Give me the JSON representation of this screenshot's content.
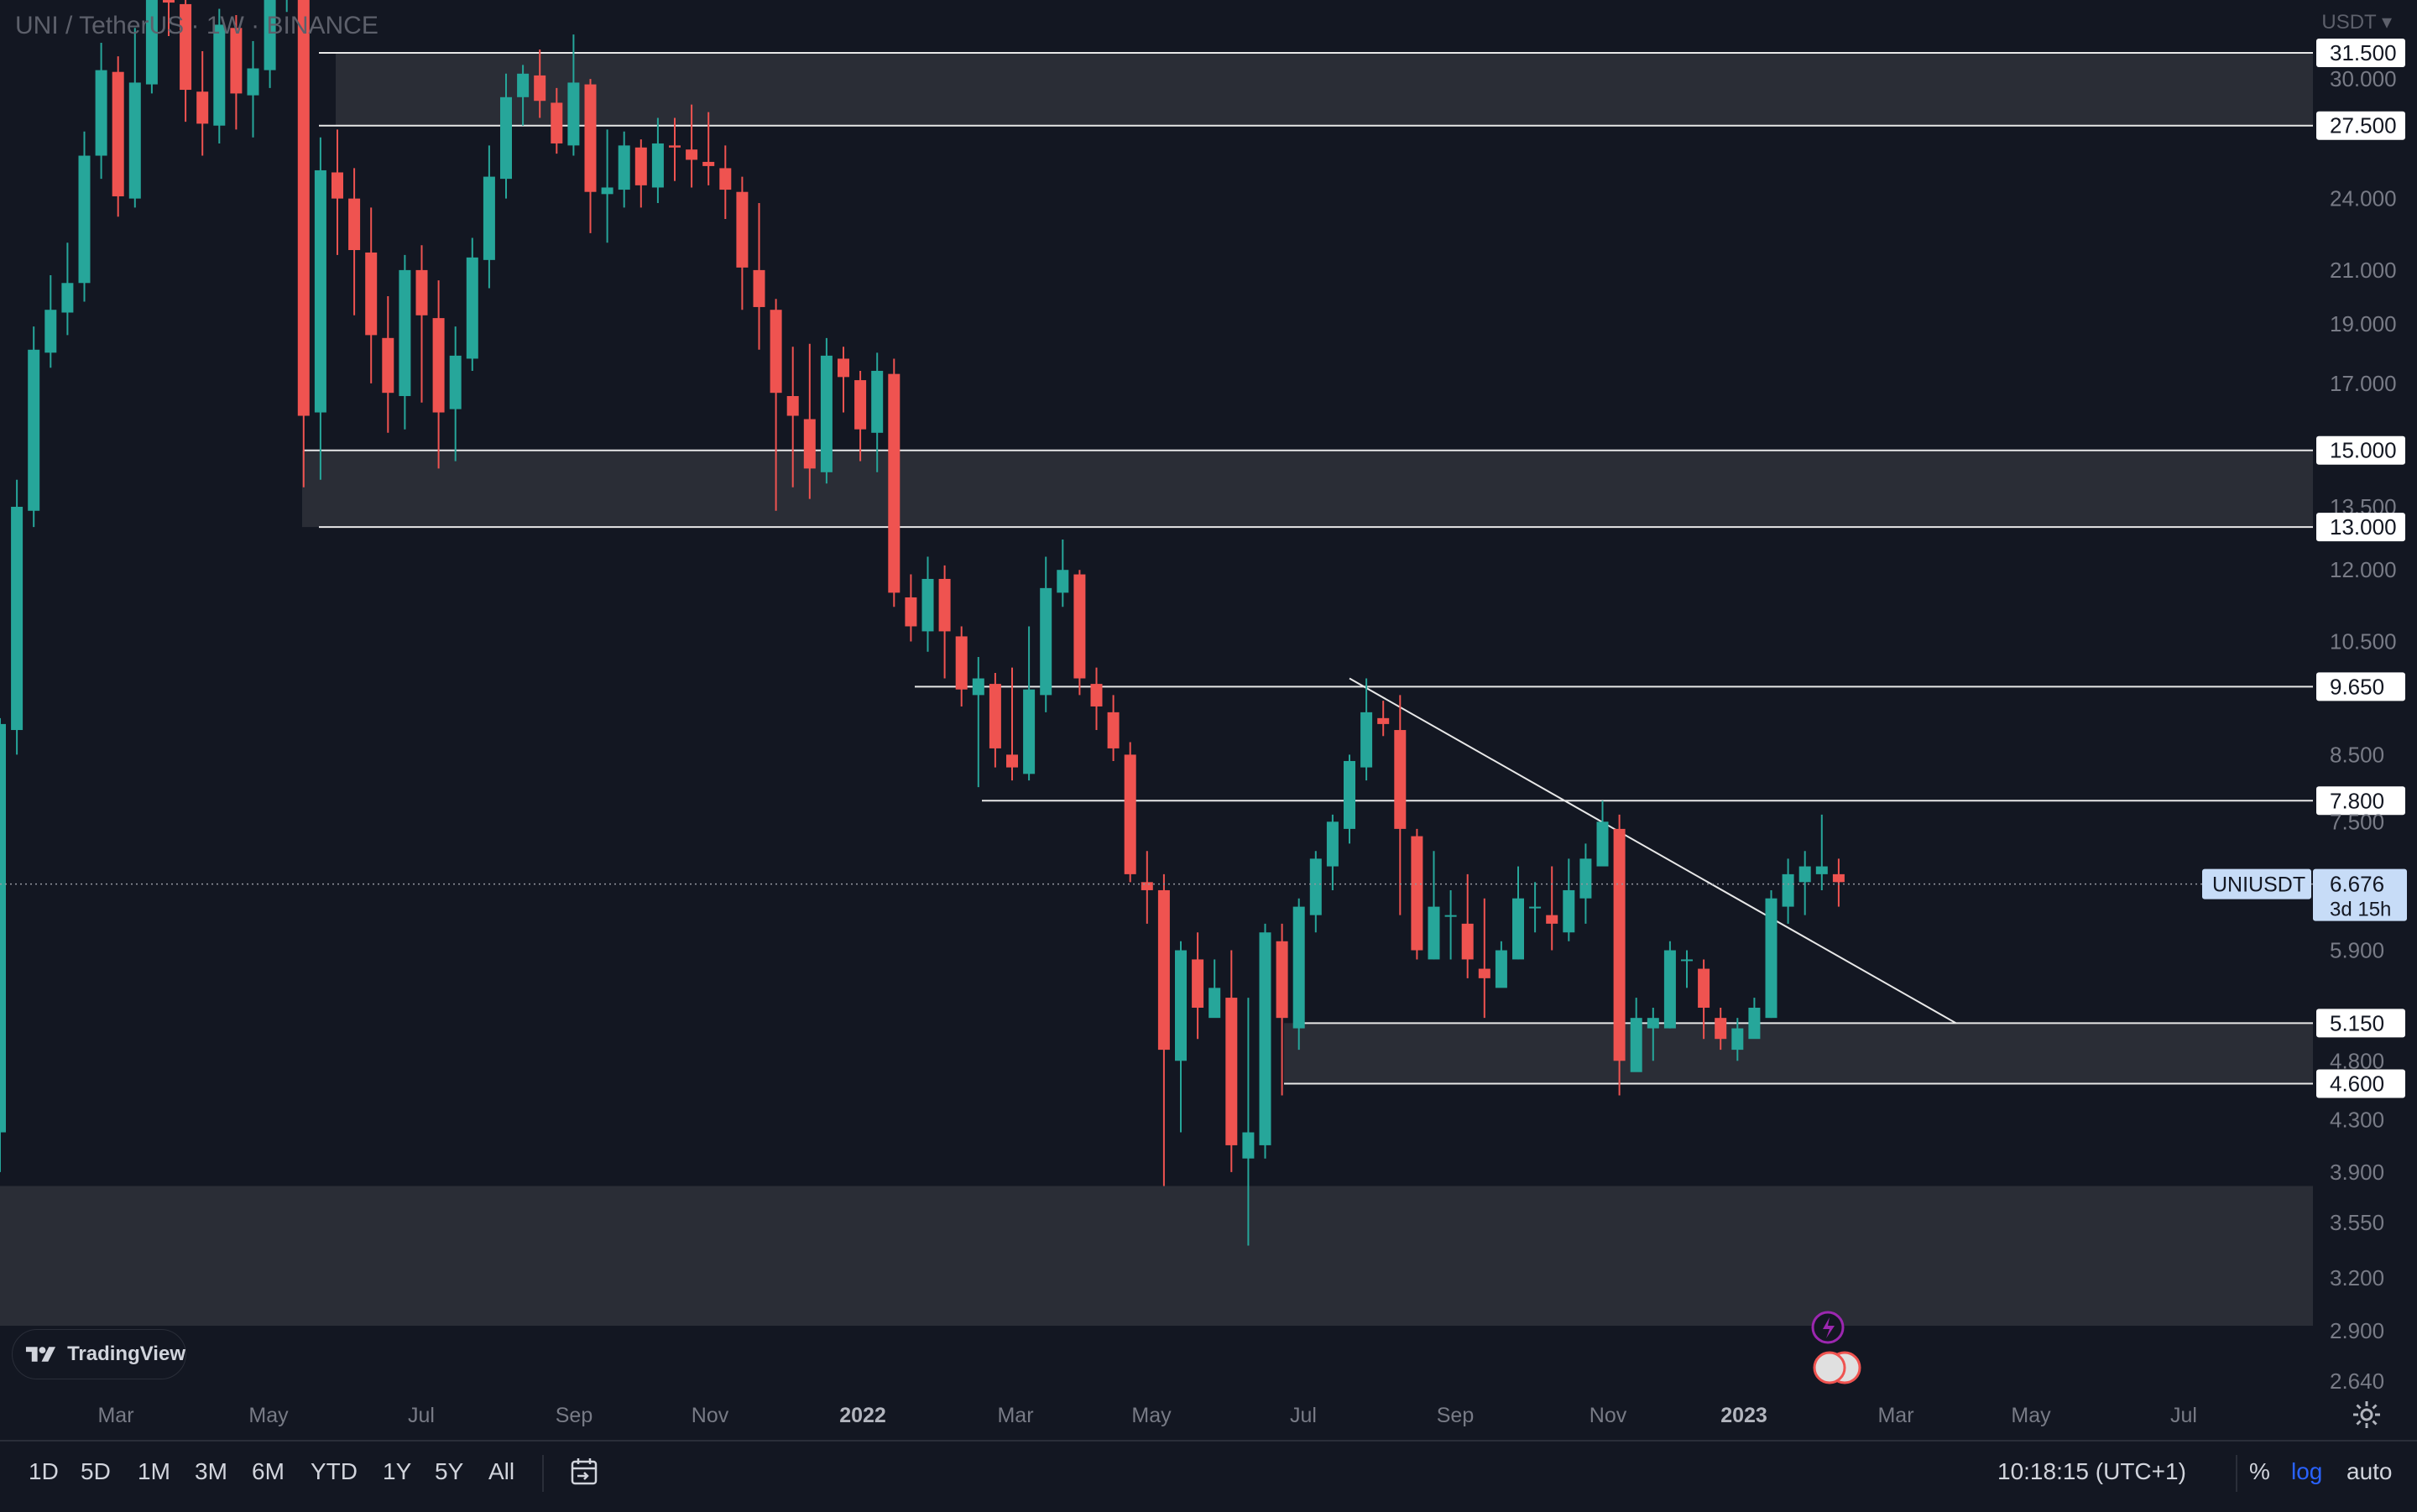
{
  "header": {
    "title": "UNI / TetherUS · 1W · BINANCE"
  },
  "price_scale": {
    "currency": "USDT",
    "ticks": [
      "31.500",
      "30.000",
      "27.500",
      "24.000",
      "21.000",
      "19.000",
      "17.000",
      "15.000",
      "13.500",
      "13.000",
      "12.000",
      "10.500",
      "9.650",
      "8.500",
      "7.800",
      "7.500",
      "6.676",
      "5.900",
      "5.150",
      "4.800",
      "4.600",
      "4.300",
      "3.900",
      "3.550",
      "3.200",
      "2.900",
      "2.640"
    ]
  },
  "chart_data": {
    "type": "candlestick",
    "symbol": "UNIUSDT",
    "interval": "1W",
    "exchange": "BINANCE",
    "y_axis": {
      "scale": "log",
      "range": [
        2.5,
        32.5
      ]
    },
    "time_axis_labels": [
      "Mar",
      "May",
      "Jul",
      "Sep",
      "Nov",
      "2022",
      "Mar",
      "May",
      "Jul",
      "Sep",
      "Nov",
      "2023",
      "Mar",
      "May",
      "Jul"
    ],
    "current_price": {
      "label": "UNIUSDT",
      "value": "6.676",
      "countdown": "3d 15h"
    },
    "horizontal_levels": [
      "31.500",
      "27.500",
      "15.000",
      "13.000",
      "9.650",
      "7.800",
      "5.150",
      "4.600"
    ],
    "zones": [
      {
        "from": 27.5,
        "to": 31.5
      },
      {
        "from": 13.0,
        "to": 15.0
      },
      {
        "from": 4.6,
        "to": 5.15
      },
      {
        "from": 2.5,
        "to": 3.8
      }
    ],
    "trendline": {
      "from": {
        "x": "2022-07-25",
        "y": 9.8
      },
      "to": {
        "x": "2023-01-30",
        "y": 5.15
      }
    },
    "candles": [
      [
        4.2,
        9.0,
        3.9,
        9.1
      ],
      [
        8.9,
        13.5,
        8.5,
        14.2
      ],
      [
        13.4,
        18.1,
        13.0,
        18.9
      ],
      [
        18.0,
        19.5,
        17.5,
        20.8
      ],
      [
        19.4,
        20.5,
        18.6,
        22.1
      ],
      [
        20.5,
        26.0,
        19.8,
        27.2
      ],
      [
        26.0,
        30.5,
        24.9,
        32.1
      ],
      [
        30.4,
        24.1,
        23.2,
        31.3
      ],
      [
        24.0,
        29.8,
        23.6,
        33.0
      ],
      [
        29.7,
        40.1,
        29.2,
        42.0
      ],
      [
        40.0,
        34.6,
        32.5,
        42.3
      ],
      [
        34.5,
        29.4,
        27.7,
        36.4
      ],
      [
        29.3,
        27.6,
        26.0,
        31.6
      ],
      [
        27.5,
        33.2,
        26.6,
        34.2
      ],
      [
        33.0,
        29.2,
        27.3,
        33.8
      ],
      [
        29.1,
        30.6,
        26.9,
        32.2
      ],
      [
        30.5,
        35.6,
        29.5,
        36.7
      ],
      [
        35.5,
        43.0,
        34.0,
        44.4
      ],
      [
        42.8,
        16.0,
        14.0,
        44.7
      ],
      [
        16.1,
        25.3,
        14.2,
        26.9
      ],
      [
        25.2,
        24.0,
        21.6,
        27.3
      ],
      [
        24.0,
        21.8,
        19.3,
        25.4
      ],
      [
        21.7,
        18.6,
        17.0,
        23.6
      ],
      [
        18.5,
        16.7,
        15.5,
        20.0
      ],
      [
        16.6,
        21.0,
        15.6,
        21.6
      ],
      [
        21.0,
        19.3,
        16.4,
        22.0
      ],
      [
        19.2,
        16.1,
        14.5,
        20.6
      ],
      [
        16.2,
        17.9,
        14.7,
        18.9
      ],
      [
        17.8,
        21.5,
        17.4,
        22.3
      ],
      [
        21.4,
        25.0,
        20.3,
        26.5
      ],
      [
        24.9,
        29.0,
        24.0,
        30.3
      ],
      [
        29.0,
        30.3,
        27.5,
        30.8
      ],
      [
        30.2,
        28.8,
        27.9,
        31.7
      ],
      [
        28.7,
        26.6,
        26.1,
        29.5
      ],
      [
        26.5,
        29.8,
        26.0,
        32.6
      ],
      [
        29.7,
        24.3,
        22.5,
        30.0
      ],
      [
        24.2,
        24.5,
        22.1,
        27.3
      ],
      [
        24.4,
        26.5,
        23.6,
        27.2
      ],
      [
        26.4,
        24.6,
        23.6,
        26.8
      ],
      [
        24.5,
        26.6,
        23.8,
        27.9
      ],
      [
        26.5,
        26.4,
        24.8,
        27.9
      ],
      [
        26.3,
        25.8,
        24.5,
        28.6
      ],
      [
        25.7,
        25.5,
        24.6,
        28.2
      ],
      [
        25.4,
        24.4,
        23.1,
        26.5
      ],
      [
        24.3,
        21.1,
        19.5,
        25.0
      ],
      [
        21.0,
        19.6,
        18.1,
        23.8
      ],
      [
        19.5,
        16.7,
        13.4,
        19.9
      ],
      [
        16.6,
        16.0,
        14.0,
        18.2
      ],
      [
        15.9,
        14.5,
        13.7,
        18.3
      ],
      [
        14.4,
        17.9,
        14.1,
        18.5
      ],
      [
        17.8,
        17.2,
        16.1,
        18.2
      ],
      [
        17.1,
        15.6,
        14.7,
        17.4
      ],
      [
        15.5,
        17.4,
        14.4,
        18.0
      ],
      [
        17.3,
        11.5,
        11.2,
        17.8
      ],
      [
        11.4,
        10.8,
        10.5,
        11.9
      ],
      [
        10.7,
        11.8,
        10.3,
        12.3
      ],
      [
        11.8,
        10.7,
        9.8,
        12.1
      ],
      [
        10.6,
        9.6,
        9.3,
        10.8
      ],
      [
        9.5,
        9.8,
        8.0,
        10.2
      ],
      [
        9.7,
        8.6,
        8.3,
        9.9
      ],
      [
        8.5,
        8.3,
        8.1,
        10.0
      ],
      [
        8.2,
        9.6,
        8.1,
        10.8
      ],
      [
        9.5,
        11.6,
        9.2,
        12.3
      ],
      [
        11.5,
        12.0,
        11.2,
        12.7
      ],
      [
        11.9,
        9.8,
        9.5,
        12.0
      ],
      [
        9.7,
        9.3,
        8.9,
        10.0
      ],
      [
        9.2,
        8.6,
        8.4,
        9.5
      ],
      [
        8.5,
        6.8,
        6.7,
        8.7
      ],
      [
        6.7,
        6.6,
        6.2,
        7.1
      ],
      [
        6.6,
        4.9,
        3.8,
        6.8
      ],
      [
        4.8,
        5.9,
        4.2,
        6.0
      ],
      [
        5.8,
        5.3,
        5.0,
        6.1
      ],
      [
        5.2,
        5.5,
        5.3,
        5.8
      ],
      [
        5.4,
        4.1,
        3.9,
        5.9
      ],
      [
        4.0,
        4.2,
        3.4,
        5.4
      ],
      [
        4.1,
        6.1,
        4.0,
        6.2
      ],
      [
        6.0,
        5.2,
        4.5,
        6.2
      ],
      [
        5.1,
        6.4,
        4.9,
        6.5
      ],
      [
        6.3,
        7.0,
        6.1,
        7.1
      ],
      [
        6.9,
        7.5,
        6.6,
        7.6
      ],
      [
        7.4,
        8.4,
        7.2,
        8.5
      ],
      [
        8.3,
        9.2,
        8.1,
        9.8
      ],
      [
        9.1,
        9.0,
        8.8,
        9.4
      ],
      [
        8.9,
        7.4,
        6.3,
        9.5
      ],
      [
        7.3,
        5.9,
        5.8,
        7.4
      ],
      [
        5.8,
        6.4,
        5.8,
        7.1
      ],
      [
        6.3,
        6.3,
        5.8,
        6.6
      ],
      [
        6.2,
        5.8,
        5.6,
        6.8
      ],
      [
        5.7,
        5.6,
        5.2,
        6.5
      ],
      [
        5.5,
        5.9,
        5.6,
        6.0
      ],
      [
        5.8,
        6.5,
        5.8,
        6.9
      ],
      [
        6.4,
        6.4,
        6.1,
        6.7
      ],
      [
        6.3,
        6.2,
        5.9,
        6.9
      ],
      [
        6.1,
        6.6,
        6.0,
        7.0
      ],
      [
        6.5,
        7.0,
        6.2,
        7.2
      ],
      [
        6.9,
        7.5,
        7.0,
        7.8
      ],
      [
        7.4,
        4.8,
        4.5,
        7.6
      ],
      [
        4.7,
        5.2,
        4.9,
        5.4
      ],
      [
        5.1,
        5.2,
        4.8,
        5.3
      ],
      [
        5.1,
        5.9,
        5.1,
        6.0
      ],
      [
        5.8,
        5.8,
        5.5,
        5.9
      ],
      [
        5.7,
        5.3,
        5.0,
        5.8
      ],
      [
        5.2,
        5.0,
        4.9,
        5.3
      ],
      [
        4.9,
        5.1,
        4.8,
        5.2
      ],
      [
        5.0,
        5.3,
        5.1,
        5.4
      ],
      [
        5.2,
        6.5,
        5.2,
        6.6
      ],
      [
        6.4,
        6.8,
        6.2,
        7.0
      ],
      [
        6.7,
        6.9,
        6.3,
        7.1
      ],
      [
        6.8,
        6.9,
        6.6,
        7.6
      ],
      [
        6.8,
        6.7,
        6.4,
        7.0
      ]
    ]
  },
  "toolbar": {
    "ranges": [
      "1D",
      "5D",
      "1M",
      "3M",
      "6M",
      "YTD",
      "1Y",
      "5Y",
      "All"
    ],
    "time": "10:18:15 (UTC+1)",
    "percent": "%",
    "log": "log",
    "auto": "auto"
  },
  "branding": {
    "logo_text": "TradingView"
  },
  "colors": {
    "up": "#26a69a",
    "down": "#ef5350",
    "background": "#131722",
    "zone": "#2f3139",
    "axis_text": "#787b86",
    "badge": "#c7dcf7"
  }
}
